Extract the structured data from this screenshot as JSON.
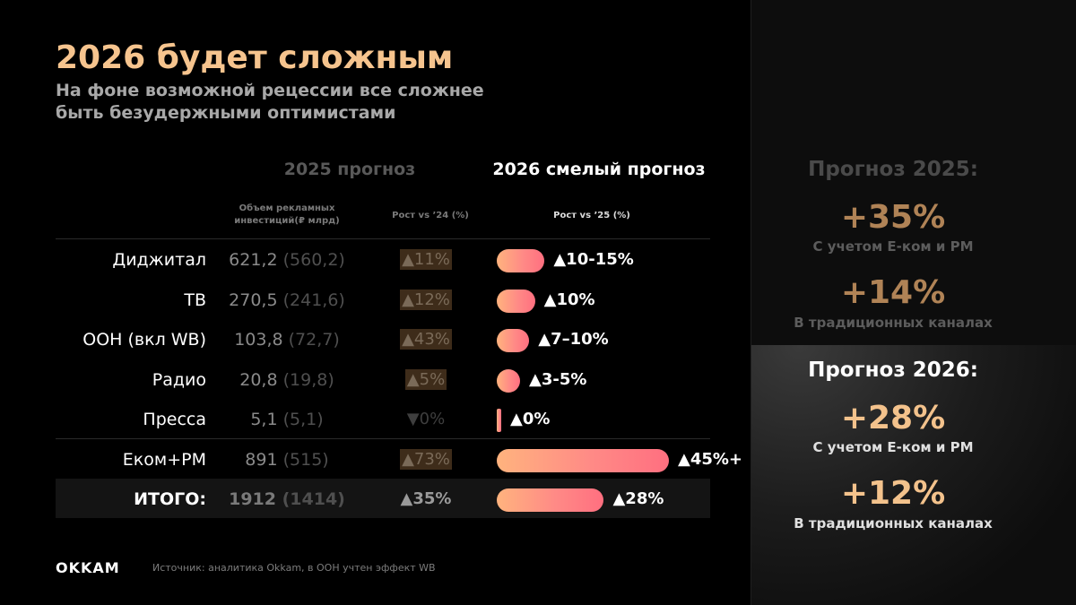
{
  "header": {
    "title": "2026 будет сложным",
    "subtitle_line1": "На фоне возможной рецессии все сложнее",
    "subtitle_line2": "быть безудержными оптимистами"
  },
  "table": {
    "header_2025": "2025 прогноз",
    "header_2026": "2026 смелый прогноз",
    "sub_volume_line1": "Объем рекламных",
    "sub_volume_line2": "инвестиций(₽ млрд)",
    "sub_growth_2025": "Рост vs ’24 (%)",
    "sub_growth_2026": "Рост vs ’25 (%)"
  },
  "chart_data": {
    "type": "bar",
    "title": "2026 смелый прогноз",
    "categories": [
      "Диджитал",
      "ТВ",
      "OOH (вкл WB)",
      "Радио",
      "Пресса",
      "Еком+РМ",
      "ИТОГО:"
    ],
    "volume_2025": [
      "621,2",
      "270,5",
      "103,8",
      "20,8",
      "5,1",
      "891",
      "1912"
    ],
    "volume_2024": [
      "(560,2)",
      "(241,6)",
      "(72,7)",
      "(19,8)",
      "(5,1)",
      "(515)",
      "(1414)"
    ],
    "growth_2025_labels": [
      "▲11%",
      "▲12%",
      "▲43%",
      "▲5%",
      "▼0%",
      "▲73%",
      "▲35%"
    ],
    "growth_2026_labels": [
      "▲10-15%",
      "▲10%",
      "▲7–10%",
      "▲3-5%",
      "▲0%",
      "▲45%+",
      "▲28%"
    ],
    "values": [
      12.5,
      10,
      8.5,
      4,
      0,
      45,
      28
    ],
    "ylim": [
      0,
      45
    ]
  },
  "forecast_panel": {
    "h2025": "Прогноз 2025:",
    "v2025_a": "+35%",
    "c2025_a": "С учетом E-ком и РМ",
    "v2025_b": "+14%",
    "c2025_b": "В традиционных каналах",
    "h2026": "Прогноз 2026:",
    "v2026_a": "+28%",
    "c2026_a": "С учетом E-ком и РМ",
    "v2026_b": "+12%",
    "c2026_b": "В традиционных каналах"
  },
  "footer": {
    "brand": "OKKAM",
    "source": "Источник: аналитика Okkam, в OOH учтен эффект WB"
  },
  "colors": {
    "title": "#f6c48e",
    "muted_orange": "#b08356",
    "bright_orange": "#f3c28c",
    "bar_start": "#ffb37e",
    "bar_end": "#ff6f80"
  }
}
